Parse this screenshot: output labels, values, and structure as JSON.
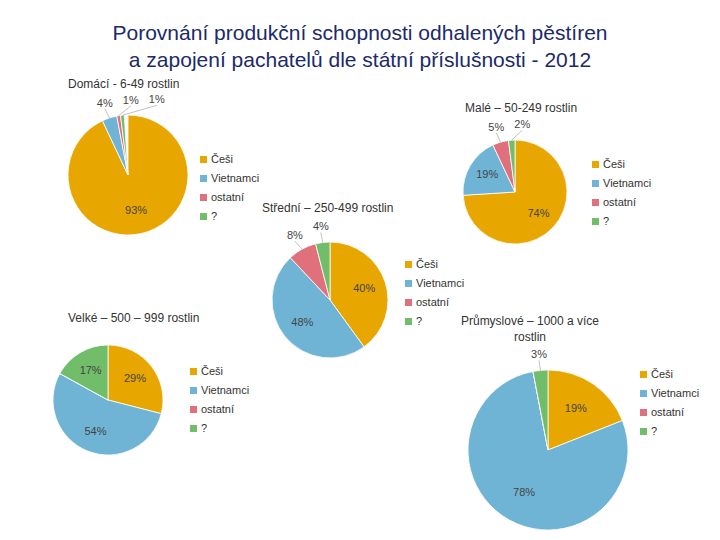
{
  "title": "Porovnání produkční schopnosti odhalených pěstíren a zapojení pachatelů dle státní příslušnosti - 2012",
  "chart_data": [
    {
      "type": "pie",
      "title": "Domácí - 6-49 rostlin",
      "categories": [
        "Češi",
        "Vietnamci",
        "ostatní",
        "?"
      ],
      "values": [
        93,
        4,
        1,
        1
      ],
      "value_labels": [
        "93%",
        "4%",
        "1%",
        "1%"
      ],
      "colors": [
        "#e8a600",
        "#6fb4d4",
        "#e0707c",
        "#72bd6a"
      ],
      "legend": "right",
      "data_labels": true
    },
    {
      "type": "pie",
      "title": "Malé – 50-249 rostlin",
      "categories": [
        "Češi",
        "Vietnamci",
        "ostatní",
        "?"
      ],
      "values": [
        74,
        19,
        5,
        2
      ],
      "value_labels": [
        "74%",
        "19%",
        "5%",
        "2%"
      ],
      "colors": [
        "#e8a600",
        "#6fb4d4",
        "#e0707c",
        "#72bd6a"
      ],
      "legend": "right",
      "data_labels": true
    },
    {
      "type": "pie",
      "title": "Střední – 250-499 rostlin",
      "categories": [
        "Češi",
        "Vietnamci",
        "ostatní",
        "?"
      ],
      "values": [
        40,
        48,
        8,
        4
      ],
      "value_labels": [
        "40%",
        "48%",
        "8%",
        "4%"
      ],
      "colors": [
        "#e8a600",
        "#6fb4d4",
        "#e0707c",
        "#72bd6a"
      ],
      "legend": "right",
      "data_labels": true
    },
    {
      "type": "pie",
      "title": "Velké – 500 – 999 rostlin",
      "categories": [
        "Češi",
        "Vietnamci",
        "ostatní",
        "?"
      ],
      "values": [
        29,
        54,
        0,
        17
      ],
      "value_labels": [
        "29%",
        "54%",
        null,
        "17%"
      ],
      "colors": [
        "#e8a600",
        "#6fb4d4",
        "#e0707c",
        "#72bd6a"
      ],
      "legend": "right",
      "data_labels": true
    },
    {
      "type": "pie",
      "title": "Průmyslové – 1000 a více rostlin",
      "categories": [
        "Češi",
        "Vietnamci",
        "ostatní",
        "?"
      ],
      "values": [
        19,
        78,
        0,
        3
      ],
      "value_labels": [
        "19%",
        "78%",
        null,
        "3%"
      ],
      "colors": [
        "#e8a600",
        "#6fb4d4",
        "#e0707c",
        "#72bd6a"
      ],
      "legend": "right",
      "data_labels": true
    }
  ]
}
